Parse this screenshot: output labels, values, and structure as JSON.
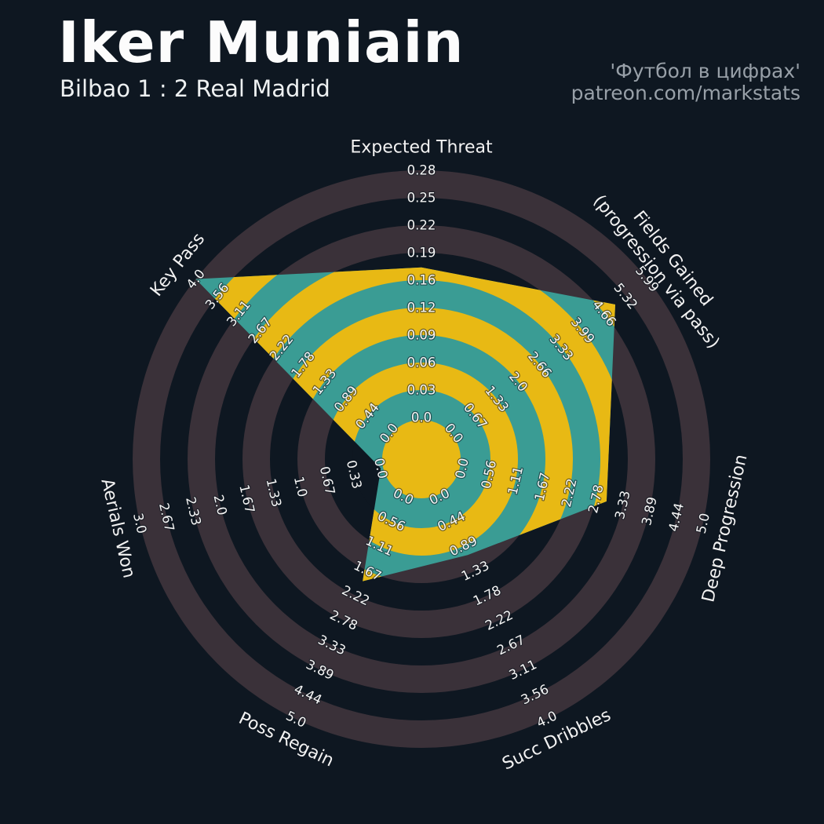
{
  "header": {
    "title": "Iker Muniain",
    "subtitle": "Bilbao 1 : 2 Real Madrid",
    "credit_line1": "'Футбол в цифрах'",
    "credit_line2": "patreon.com/markstats"
  },
  "chart_data": {
    "type": "radar",
    "title": "Iker Muniain — Bilbao 1 : 2 Real Madrid",
    "legend_position": "none",
    "axes": [
      {
        "label": "Expected Threat",
        "max": 0.28,
        "value": 0.17,
        "ticks": [
          "0.0",
          "0.03",
          "0.06",
          "0.09",
          "0.12",
          "0.16",
          "0.19",
          "0.22",
          "0.25",
          "0.28"
        ]
      },
      {
        "label": "Fields Gained",
        "label2": "(progression via pass)",
        "max": 5.99,
        "value": 5.0,
        "ticks": [
          "0.0",
          "0.67",
          "1.33",
          "2.0",
          "2.66",
          "3.33",
          "3.99",
          "4.66",
          "5.32",
          "5.99"
        ]
      },
      {
        "label": "Deep Progression",
        "max": 5.0,
        "value": 3.0,
        "ticks": [
          "0.0",
          "0.56",
          "1.11",
          "1.67",
          "2.22",
          "2.78",
          "3.33",
          "3.89",
          "4.44",
          "5.0"
        ]
      },
      {
        "label": "Succ Dribbles",
        "max": 4.0,
        "value": 1.05,
        "ticks": [
          "0.0",
          "0.44",
          "0.89",
          "1.33",
          "1.78",
          "2.22",
          "2.67",
          "3.11",
          "3.56",
          "4.0"
        ]
      },
      {
        "label": "Poss Regain",
        "max": 5.0,
        "value": 1.9,
        "ticks": [
          "0.0",
          "0.56",
          "1.11",
          "1.67",
          "2.22",
          "2.78",
          "3.33",
          "3.89",
          "4.44",
          "5.0"
        ]
      },
      {
        "label": "Aerials Won",
        "max": 3.0,
        "value": 0.0,
        "ticks": [
          "0.0",
          "0.33",
          "0.67",
          "1.0",
          "1.33",
          "1.67",
          "2.0",
          "2.33",
          "2.67",
          "3.0"
        ]
      },
      {
        "label": "Key Pass",
        "max": 4.0,
        "value": 4.0,
        "ticks": [
          "0.0",
          "0.44",
          "0.89",
          "1.33",
          "1.78",
          "2.22",
          "2.67",
          "3.11",
          "3.56",
          "4.0"
        ]
      }
    ],
    "colors": {
      "background": "#0e1721",
      "ring_outer_alt": "#3a3139",
      "polygon_fill": "#3a9c94",
      "ring_inner": "#e8b914",
      "tick_text": "#f5f5f5"
    }
  }
}
